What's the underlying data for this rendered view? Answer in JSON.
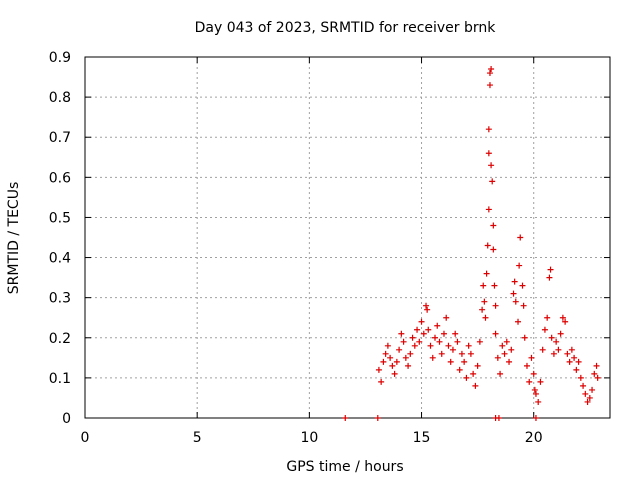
{
  "chart_data": {
    "type": "scatter",
    "title": "Day 043 of 2023, SRMTID for receiver brnk",
    "xlabel": "GPS time / hours",
    "ylabel": "SRMTID / TECUs",
    "xlim": [
      0,
      23.4
    ],
    "ylim": [
      0,
      0.9
    ],
    "xticks": [
      0,
      5,
      10,
      15,
      20
    ],
    "yticks": [
      0,
      0.1,
      0.2,
      0.3,
      0.4,
      0.5,
      0.6,
      0.7,
      0.8,
      0.9
    ],
    "xtick_labels": [
      "0",
      "5",
      "10",
      "15",
      "20"
    ],
    "ytick_labels": [
      "0",
      "0.1",
      "0.2",
      "0.3",
      "0.4",
      "0.5",
      "0.6",
      "0.7",
      "0.8",
      "0.9"
    ],
    "grid": true,
    "series": [
      {
        "name": "SRMTID",
        "marker": "+",
        "color": "#dd0000",
        "points": [
          [
            11.6,
            0.0
          ],
          [
            13.05,
            0.0
          ],
          [
            18.3,
            0.0
          ],
          [
            18.45,
            0.0
          ],
          [
            20.1,
            0.0
          ],
          [
            13.1,
            0.12
          ],
          [
            13.2,
            0.09
          ],
          [
            13.3,
            0.14
          ],
          [
            13.4,
            0.16
          ],
          [
            13.5,
            0.18
          ],
          [
            13.6,
            0.15
          ],
          [
            13.7,
            0.13
          ],
          [
            13.8,
            0.11
          ],
          [
            13.9,
            0.14
          ],
          [
            14.0,
            0.17
          ],
          [
            14.1,
            0.21
          ],
          [
            14.2,
            0.19
          ],
          [
            14.3,
            0.15
          ],
          [
            14.4,
            0.13
          ],
          [
            14.5,
            0.16
          ],
          [
            14.6,
            0.2
          ],
          [
            14.7,
            0.18
          ],
          [
            14.8,
            0.22
          ],
          [
            14.9,
            0.19
          ],
          [
            15.0,
            0.24
          ],
          [
            15.1,
            0.21
          ],
          [
            15.2,
            0.28
          ],
          [
            15.25,
            0.27
          ],
          [
            15.3,
            0.22
          ],
          [
            15.4,
            0.18
          ],
          [
            15.5,
            0.15
          ],
          [
            15.6,
            0.2
          ],
          [
            15.7,
            0.23
          ],
          [
            15.8,
            0.19
          ],
          [
            15.9,
            0.16
          ],
          [
            16.0,
            0.21
          ],
          [
            16.1,
            0.25
          ],
          [
            16.2,
            0.18
          ],
          [
            16.3,
            0.14
          ],
          [
            16.4,
            0.17
          ],
          [
            16.5,
            0.21
          ],
          [
            16.6,
            0.19
          ],
          [
            16.7,
            0.12
          ],
          [
            16.8,
            0.16
          ],
          [
            16.9,
            0.14
          ],
          [
            17.0,
            0.1
          ],
          [
            17.1,
            0.18
          ],
          [
            17.2,
            0.16
          ],
          [
            17.3,
            0.11
          ],
          [
            17.4,
            0.08
          ],
          [
            17.5,
            0.13
          ],
          [
            17.6,
            0.19
          ],
          [
            17.7,
            0.27
          ],
          [
            17.75,
            0.33
          ],
          [
            17.8,
            0.29
          ],
          [
            17.85,
            0.25
          ],
          [
            17.9,
            0.36
          ],
          [
            17.95,
            0.43
          ],
          [
            18.0,
            0.52
          ],
          [
            18.0,
            0.66
          ],
          [
            18.0,
            0.72
          ],
          [
            18.05,
            0.83
          ],
          [
            18.05,
            0.86
          ],
          [
            18.1,
            0.87
          ],
          [
            18.1,
            0.63
          ],
          [
            18.15,
            0.59
          ],
          [
            18.2,
            0.48
          ],
          [
            18.2,
            0.42
          ],
          [
            18.25,
            0.33
          ],
          [
            18.3,
            0.28
          ],
          [
            18.3,
            0.21
          ],
          [
            18.4,
            0.15
          ],
          [
            18.5,
            0.11
          ],
          [
            18.6,
            0.18
          ],
          [
            18.7,
            0.16
          ],
          [
            18.8,
            0.19
          ],
          [
            18.9,
            0.14
          ],
          [
            19.0,
            0.17
          ],
          [
            19.1,
            0.31
          ],
          [
            19.15,
            0.34
          ],
          [
            19.2,
            0.29
          ],
          [
            19.3,
            0.24
          ],
          [
            19.35,
            0.38
          ],
          [
            19.4,
            0.45
          ],
          [
            19.5,
            0.33
          ],
          [
            19.55,
            0.28
          ],
          [
            19.6,
            0.2
          ],
          [
            19.7,
            0.13
          ],
          [
            19.8,
            0.09
          ],
          [
            19.9,
            0.15
          ],
          [
            20.0,
            0.11
          ],
          [
            20.05,
            0.07
          ],
          [
            20.1,
            0.06
          ],
          [
            20.2,
            0.04
          ],
          [
            20.3,
            0.09
          ],
          [
            20.4,
            0.17
          ],
          [
            20.5,
            0.22
          ],
          [
            20.6,
            0.25
          ],
          [
            20.7,
            0.35
          ],
          [
            20.75,
            0.37
          ],
          [
            20.8,
            0.2
          ],
          [
            20.9,
            0.16
          ],
          [
            21.0,
            0.19
          ],
          [
            21.1,
            0.17
          ],
          [
            21.2,
            0.21
          ],
          [
            21.3,
            0.25
          ],
          [
            21.4,
            0.24
          ],
          [
            21.5,
            0.16
          ],
          [
            21.6,
            0.14
          ],
          [
            21.7,
            0.17
          ],
          [
            21.8,
            0.15
          ],
          [
            21.9,
            0.12
          ],
          [
            22.0,
            0.14
          ],
          [
            22.1,
            0.1
          ],
          [
            22.2,
            0.08
          ],
          [
            22.3,
            0.06
          ],
          [
            22.4,
            0.04
          ],
          [
            22.5,
            0.05
          ],
          [
            22.6,
            0.07
          ],
          [
            22.7,
            0.11
          ],
          [
            22.8,
            0.13
          ],
          [
            22.85,
            0.1
          ]
        ]
      }
    ]
  }
}
